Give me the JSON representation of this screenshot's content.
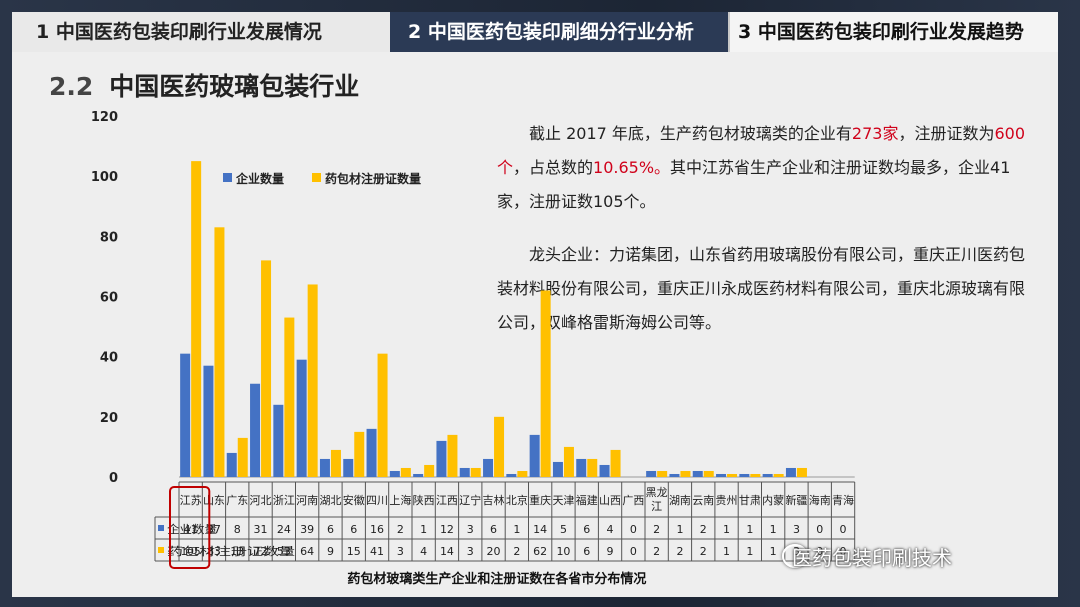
{
  "tabs": [
    {
      "label": "1  中国医药包装印刷行业发展情况"
    },
    {
      "label": "2  中国医药包装印刷细分行业分析"
    },
    {
      "label": "3  中国医药包装印刷行业发展趋势"
    }
  ],
  "section": {
    "number": "2.2",
    "title": "中国医药玻璃包装行业"
  },
  "paragraph1": {
    "p1": "截止 2017 年底，生产药包材玻璃类的企业有",
    "n1": "273家",
    "p2": "，注册证数为",
    "n2": "600个",
    "p3": "，占总数的",
    "n3": "10.65%。",
    "p4": "其中江苏省生产企业和注册证数均最多，企业41家，注册证数105个。"
  },
  "paragraph2": "龙头企业：力诺集团，山东省药用玻璃股份有限公司，重庆正川医药包装材料股份有限公司，重庆正川永成医药材料有限公司，重庆北源玻璃有限公司，双峰格雷斯海姆公司等。",
  "watermark": "医药包装印刷技术",
  "colors": {
    "series1": "#4472c4",
    "series2": "#ffc000",
    "highlight": "#c00000",
    "tab_active": "#2b3a55"
  },
  "chart_data": {
    "type": "bar",
    "title": "药包材玻璃类生产企业和注册证数在各省市分布情况",
    "ylim": [
      0,
      120
    ],
    "yticks": [
      0,
      20,
      40,
      60,
      80,
      100,
      120
    ],
    "legend_position": "top-left",
    "categories": [
      "江苏",
      "山东",
      "广东",
      "河北",
      "浙江",
      "河南",
      "湖北",
      "安徽",
      "四川",
      "上海",
      "陕西",
      "江西",
      "辽宁",
      "吉林",
      "北京",
      "重庆",
      "天津",
      "福建",
      "山西",
      "广西",
      "黑龙江",
      "湖南",
      "云南",
      "贵州",
      "甘肃",
      "内蒙",
      "新疆",
      "海南",
      "青海"
    ],
    "series": [
      {
        "name": "企业数量",
        "color": "#4472c4",
        "values": [
          41,
          37,
          8,
          31,
          24,
          39,
          6,
          6,
          16,
          2,
          1,
          12,
          3,
          6,
          1,
          14,
          5,
          6,
          4,
          0,
          2,
          1,
          2,
          1,
          1,
          1,
          3,
          0,
          0
        ]
      },
      {
        "name": "药包材注册证数量",
        "color": "#ffc000",
        "values": [
          105,
          83,
          13,
          72,
          53,
          64,
          9,
          15,
          41,
          3,
          4,
          14,
          3,
          20,
          2,
          62,
          10,
          6,
          9,
          0,
          2,
          2,
          2,
          1,
          1,
          1,
          3,
          0,
          0
        ]
      }
    ],
    "highlight_category": "江苏"
  }
}
